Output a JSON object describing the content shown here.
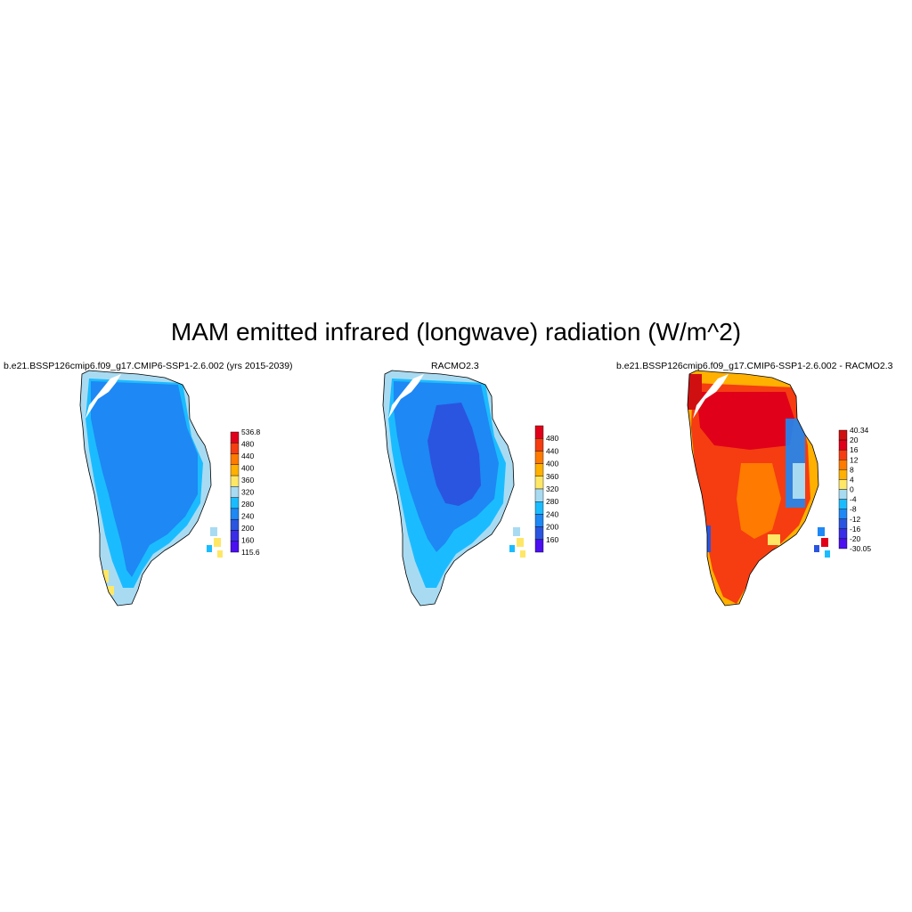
{
  "title": "MAM emitted infrared (longwave) radiation (W/m^2)",
  "panels": [
    {
      "title": "b.e21.BSSP126cmip6.f09_g17.CMIP6-SSP1-2.6.002 (yrs 2015-2039)",
      "colorbar": {
        "labels": [
          "536.8",
          "480",
          "440",
          "400",
          "360",
          "320",
          "280",
          "240",
          "200",
          "160",
          "115.6"
        ],
        "colors": [
          "#e0001a",
          "#f53d11",
          "#ff7a00",
          "#ffb000",
          "#ffe766",
          "#a8dbf2",
          "#1bbcff",
          "#1e88f4",
          "#2a55e0",
          "#3a2de8",
          "#4b0ff0"
        ]
      }
    },
    {
      "title": "RACMO2.3",
      "colorbar": {
        "labels": [
          "480",
          "440",
          "400",
          "360",
          "320",
          "280",
          "240",
          "200",
          "160"
        ],
        "colors": [
          "#e0001a",
          "#f53d11",
          "#ff7a00",
          "#ffb000",
          "#ffe766",
          "#a8dbf2",
          "#1bbcff",
          "#1e88f4",
          "#2a55e0",
          "#4b0ff0"
        ]
      }
    },
    {
      "title": "b.e21.BSSP126cmip6.f09_g17.CMIP6-SSP1-2.6.002 - RACMO2.3",
      "colorbar": {
        "labels": [
          "40.34",
          "20",
          "16",
          "12",
          "8",
          "4",
          "0",
          "-4",
          "-8",
          "-12",
          "-16",
          "-20",
          "-30.05"
        ],
        "colors": [
          "#d01010",
          "#e0001a",
          "#f53d11",
          "#ff7a00",
          "#ffb000",
          "#ffe766",
          "#a8dbf2",
          "#1bbcff",
          "#1e88f4",
          "#2a55e0",
          "#3a2de8",
          "#4b0ff0"
        ]
      }
    }
  ]
}
